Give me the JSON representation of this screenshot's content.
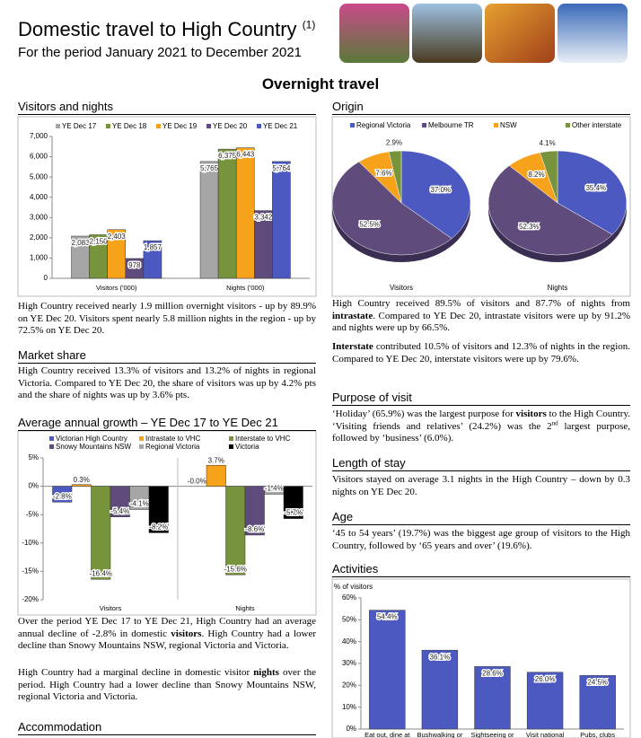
{
  "header": {
    "title": "Domestic travel to High Country",
    "note": "(1)",
    "subtitle": "For the period January 2021 to December 2021",
    "heading": "Overnight travel"
  },
  "sections": [
    {
      "heading": "Visitors and nights",
      "paragraphs": [
        [
          "High Country received nearly 1.9 million overnight visitors - up by 89.9% on YE Dec 20. Visitors spent nearly 5.8 million nights in the region - up by 72.5% on YE Dec 20."
        ]
      ]
    },
    {
      "heading": "Market share",
      "paragraphs": [
        [
          "High Country received 13.3% of visitors and 13.2% of nights in regional Victoria. Compared to YE Dec 20, the share of visitors was up by 4.2% pts and the share of nights was up by 3.6% pts."
        ]
      ]
    },
    {
      "heading": "Average annual growth – YE Dec 17 to YE Dec 21",
      "paragraphs": [
        [
          "Over the period YE Dec 17 to YE Dec 21, High Country had an average annual decline of -2.8% in domestic ",
          {
            "text": "visitors",
            "bold": true
          },
          ". High Country had a lower decline than Snowy Mountains NSW, regional Victoria and Victoria."
        ],
        [
          "High Country had a marginal decline in domestic visitor ",
          {
            "text": "nights",
            "bold": true
          },
          " over the period. High Country had a lower decline than Snowy Mountains NSW, regional Victoria and Victoria."
        ]
      ]
    },
    {
      "heading": "Accommodation",
      "paragraphs": []
    },
    {
      "heading": "Origin",
      "paragraphs": [
        [
          "High Country received 89.5% of visitors and 87.7% of nights from ",
          {
            "text": "intrastate",
            "bold": true
          },
          ". Compared to YE Dec 20, intrastate visitors were up by 91.2% and nights were up by 66.5%."
        ],
        [
          {
            "text": "Interstate",
            "bold": true
          },
          " contributed 10.5% of visitors and 12.3% of nights in the region. Compared to YE Dec 20, interstate visitors were up by 79.6%."
        ]
      ]
    },
    {
      "heading": "Purpose of visit",
      "paragraphs": [
        [
          "‘Holiday’ (65.9%) was the largest purpose for ",
          {
            "text": "visitors",
            "bold": true
          },
          " to the High Country. ‘Visiting friends and relatives’ (24.2%) was the 2",
          {
            "text": "nd",
            "sup": true
          },
          " largest purpose, followed by ‘business’ (6.0%)."
        ]
      ]
    },
    {
      "heading": "Length of stay",
      "paragraphs": [
        [
          "Visitors stayed on average 3.1 nights in the High Country – down by 0.3 nights on YE Dec 20."
        ]
      ]
    },
    {
      "heading": "Age",
      "paragraphs": [
        [
          "‘45 to 54 years’ (19.7%) was the biggest age group of visitors to the High Country, followed by ‘65 years and over’ (19.6%)."
        ]
      ]
    },
    {
      "heading": "Activities",
      "paragraphs": []
    }
  ],
  "chart_data": [
    {
      "type": "bar",
      "categories": [
        "Visitors ('000)",
        "Nights ('000)"
      ],
      "series": [
        {
          "name": "YE Dec 17",
          "color": "#a6a6a6",
          "values": [
            2083,
            5765
          ],
          "value_labels": [
            "2,083",
            "5,765"
          ]
        },
        {
          "name": "YE Dec 18",
          "color": "#77933c",
          "values": [
            2150,
            6375
          ],
          "value_labels": [
            "2,150",
            "6,375"
          ]
        },
        {
          "name": "YE Dec 19",
          "color": "#f7a21b",
          "values": [
            2403,
            6443
          ],
          "value_labels": [
            "2,403",
            "6,443"
          ]
        },
        {
          "name": "YE Dec 20",
          "color": "#5f4b7c",
          "values": [
            978,
            3342
          ],
          "value_labels": [
            "978",
            "3,342"
          ]
        },
        {
          "name": "YE Dec 21",
          "color": "#4b59c0",
          "values": [
            1857,
            5764
          ],
          "value_labels": [
            "1,857",
            "5,764"
          ]
        }
      ],
      "ylim": [
        0,
        7000
      ],
      "yticks": [
        0,
        {
          "value": 1000,
          "label": "1,000"
        },
        {
          "value": 2000,
          "label": "2,000"
        },
        {
          "value": 3000,
          "label": "3,000"
        },
        {
          "value": 4000,
          "label": "4,000"
        },
        {
          "value": 5000,
          "label": "5,000"
        },
        {
          "value": 6000,
          "label": "6,000"
        },
        {
          "value": 7000,
          "label": "7,000"
        }
      ],
      "legend": "top"
    },
    {
      "type": "bar",
      "categories": [
        "Visitors",
        "Nights"
      ],
      "series": [
        {
          "name": "Victorian High Country",
          "color": "#4b59c0",
          "values": [
            -2.8,
            0
          ],
          "value_labels": [
            "-2.8%",
            "-0.0%"
          ]
        },
        {
          "name": "Intrastate to VHC",
          "color": "#f7a21b",
          "values": [
            0.3,
            3.7
          ],
          "value_labels": [
            "0.3%",
            "3.7%"
          ]
        },
        {
          "name": "Interstate to VHC",
          "color": "#77933c",
          "values": [
            -16.4,
            -15.6
          ],
          "value_labels": [
            "-16.4%",
            "-15.6%"
          ]
        },
        {
          "name": "Snowy Mountains NSW",
          "color": "#5f4b7c",
          "values": [
            -5.4,
            -8.6
          ],
          "value_labels": [
            "-5.4%",
            "-8.6%"
          ]
        },
        {
          "name": "Regional Victoria",
          "color": "#a6a6a6",
          "values": [
            -4.1,
            -1.4
          ],
          "value_labels": [
            "-4.1%",
            "-1.4%"
          ]
        },
        {
          "name": "Victoria",
          "color": "#000000",
          "values": [
            -8.2,
            -5.7
          ],
          "value_labels": [
            "-8.2%",
            "-5.7%"
          ]
        }
      ],
      "ylim": [
        -20,
        5
      ],
      "yticks": [
        {
          "value": 5,
          "label": "5%"
        },
        {
          "value": 0,
          "label": "0%"
        },
        {
          "value": -5,
          "label": "-5%"
        },
        {
          "value": -10,
          "label": "-10%"
        },
        {
          "value": -15,
          "label": "-15%"
        },
        {
          "value": -20,
          "label": "-20%"
        }
      ],
      "legend": "top"
    },
    {
      "type": "pie",
      "categories": [
        "Regional Victoria",
        "Melbourne TR",
        "NSW",
        "Other interstate"
      ],
      "colors": [
        "#4b59c0",
        "#5f4b7c",
        "#f7a21b",
        "#77933c"
      ],
      "series": [
        {
          "name": "Visitors",
          "values": [
            37.0,
            52.5,
            7.6,
            2.9
          ],
          "value_labels": [
            "37.0%",
            "52.5%",
            "7.6%",
            "2.9%"
          ]
        },
        {
          "name": "Nights",
          "values": [
            35.4,
            52.3,
            8.2,
            4.1
          ],
          "value_labels": [
            "35.4%",
            "52.3%",
            "8.2%",
            "4.1%"
          ]
        }
      ],
      "legend": "top"
    },
    {
      "type": "bar",
      "y_label": "% of visitors",
      "categories": [
        "Eat out, dine at",
        "Bushwalking or",
        "Sightseeing or",
        "Visit national",
        "Pubs, clubs"
      ],
      "color": "#4b59c0",
      "values": [
        54.4,
        36.1,
        28.6,
        26.0,
        24.5
      ],
      "value_labels": [
        "54.4%",
        "36.1%",
        "28.6%",
        "26.0%",
        "24.5%"
      ],
      "ylim": [
        0,
        60
      ],
      "yticks": [
        {
          "value": 0,
          "label": "0%"
        },
        {
          "value": 10,
          "label": "10%"
        },
        {
          "value": 20,
          "label": "20%"
        },
        {
          "value": 30,
          "label": "30%"
        },
        {
          "value": 40,
          "label": "40%"
        },
        {
          "value": 50,
          "label": "50%"
        },
        {
          "value": 60,
          "label": "60%"
        }
      ]
    }
  ]
}
